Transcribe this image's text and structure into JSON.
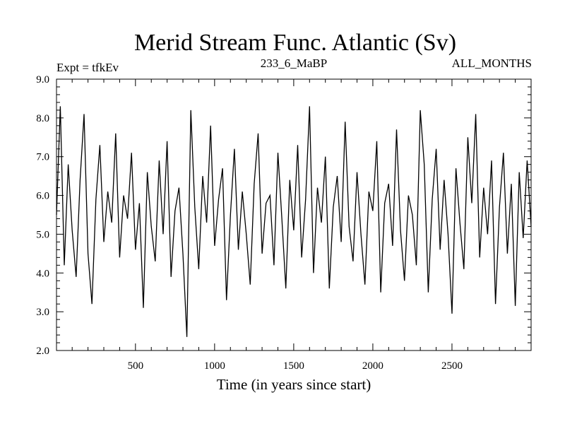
{
  "chart_data": {
    "type": "line",
    "title": "Merid Stream Func. Atlantic (Sv)",
    "subtitle_left": "Expt = tfkEv",
    "subtitle_center": "233_6_MaBP",
    "subtitle_right": "ALL_MONTHS",
    "xlabel": "Time (in years since start)",
    "ylabel": "",
    "xlim": [
      1,
      3000
    ],
    "ylim": [
      2.0,
      9.0
    ],
    "x_ticks": [
      500,
      1000,
      1500,
      2000,
      2500
    ],
    "x_tick_labels": [
      "500",
      "1000",
      "1500",
      "2000",
      "2500"
    ],
    "y_ticks": [
      2.0,
      3.0,
      4.0,
      5.0,
      6.0,
      7.0,
      8.0,
      9.0
    ],
    "y_tick_labels": [
      "2.0",
      "3.0",
      "4.0",
      "5.0",
      "6.0",
      "7.0",
      "8.0",
      "9.0"
    ],
    "grid": false,
    "line_color": "#000000",
    "series": [
      {
        "x": [
          1,
          25,
          50,
          75,
          100,
          125,
          150,
          175,
          200,
          225,
          250,
          275,
          300,
          325,
          350,
          375,
          400,
          425,
          450,
          475,
          500,
          525,
          550,
          575,
          600,
          625,
          650,
          675,
          700,
          725,
          750,
          775,
          800,
          825,
          850,
          875,
          900,
          925,
          950,
          975,
          1000,
          1025,
          1050,
          1075,
          1100,
          1125,
          1150,
          1175,
          1200,
          1225,
          1250,
          1275,
          1300,
          1325,
          1350,
          1375,
          1400,
          1425,
          1450,
          1475,
          1500,
          1525,
          1550,
          1575,
          1600,
          1625,
          1650,
          1675,
          1700,
          1725,
          1750,
          1775,
          1800,
          1825,
          1850,
          1875,
          1900,
          1925,
          1950,
          1975,
          2000,
          2025,
          2050,
          2075,
          2100,
          2125,
          2150,
          2175,
          2200,
          2225,
          2250,
          2275,
          2300,
          2325,
          2350,
          2375,
          2400,
          2425,
          2450,
          2475,
          2500,
          2525,
          2550,
          2575,
          2600,
          2625,
          2650,
          2675,
          2700,
          2725,
          2750,
          2775,
          2800,
          2825,
          2850,
          2875,
          2900,
          2925,
          2950,
          2975,
          3000
        ],
        "values": [
          5.5,
          8.3,
          4.2,
          6.8,
          5.1,
          3.9,
          6.4,
          8.1,
          4.5,
          3.2,
          5.9,
          7.3,
          4.8,
          6.1,
          5.3,
          7.6,
          4.4,
          6.0,
          5.4,
          7.1,
          4.6,
          5.8,
          3.1,
          6.6,
          5.2,
          4.3,
          6.9,
          5.0,
          7.4,
          3.9,
          5.6,
          6.2,
          4.5,
          2.35,
          8.2,
          5.7,
          4.1,
          6.5,
          5.3,
          7.8,
          4.7,
          5.9,
          6.7,
          3.3,
          5.5,
          7.2,
          4.6,
          6.1,
          5.0,
          3.7,
          6.3,
          7.6,
          4.5,
          5.8,
          6.0,
          4.2,
          7.1,
          5.4,
          3.6,
          6.4,
          5.1,
          7.3,
          4.4,
          5.9,
          8.3,
          4.0,
          6.2,
          5.3,
          7.0,
          3.6,
          5.7,
          6.5,
          4.8,
          7.9,
          5.2,
          4.3,
          6.6,
          5.0,
          3.7,
          6.1,
          5.6,
          7.4,
          3.5,
          5.8,
          6.3,
          4.7,
          7.7,
          5.1,
          3.8,
          6.0,
          5.5,
          4.2,
          8.2,
          6.8,
          3.5,
          5.9,
          7.2,
          4.6,
          6.4,
          5.0,
          2.95,
          6.7,
          5.3,
          4.1,
          7.5,
          5.8,
          8.1,
          4.4,
          6.2,
          5.0,
          6.9,
          3.2,
          5.7,
          7.1,
          4.5,
          6.3,
          3.15,
          6.6,
          4.9,
          6.9,
          5.2
        ]
      }
    ]
  }
}
